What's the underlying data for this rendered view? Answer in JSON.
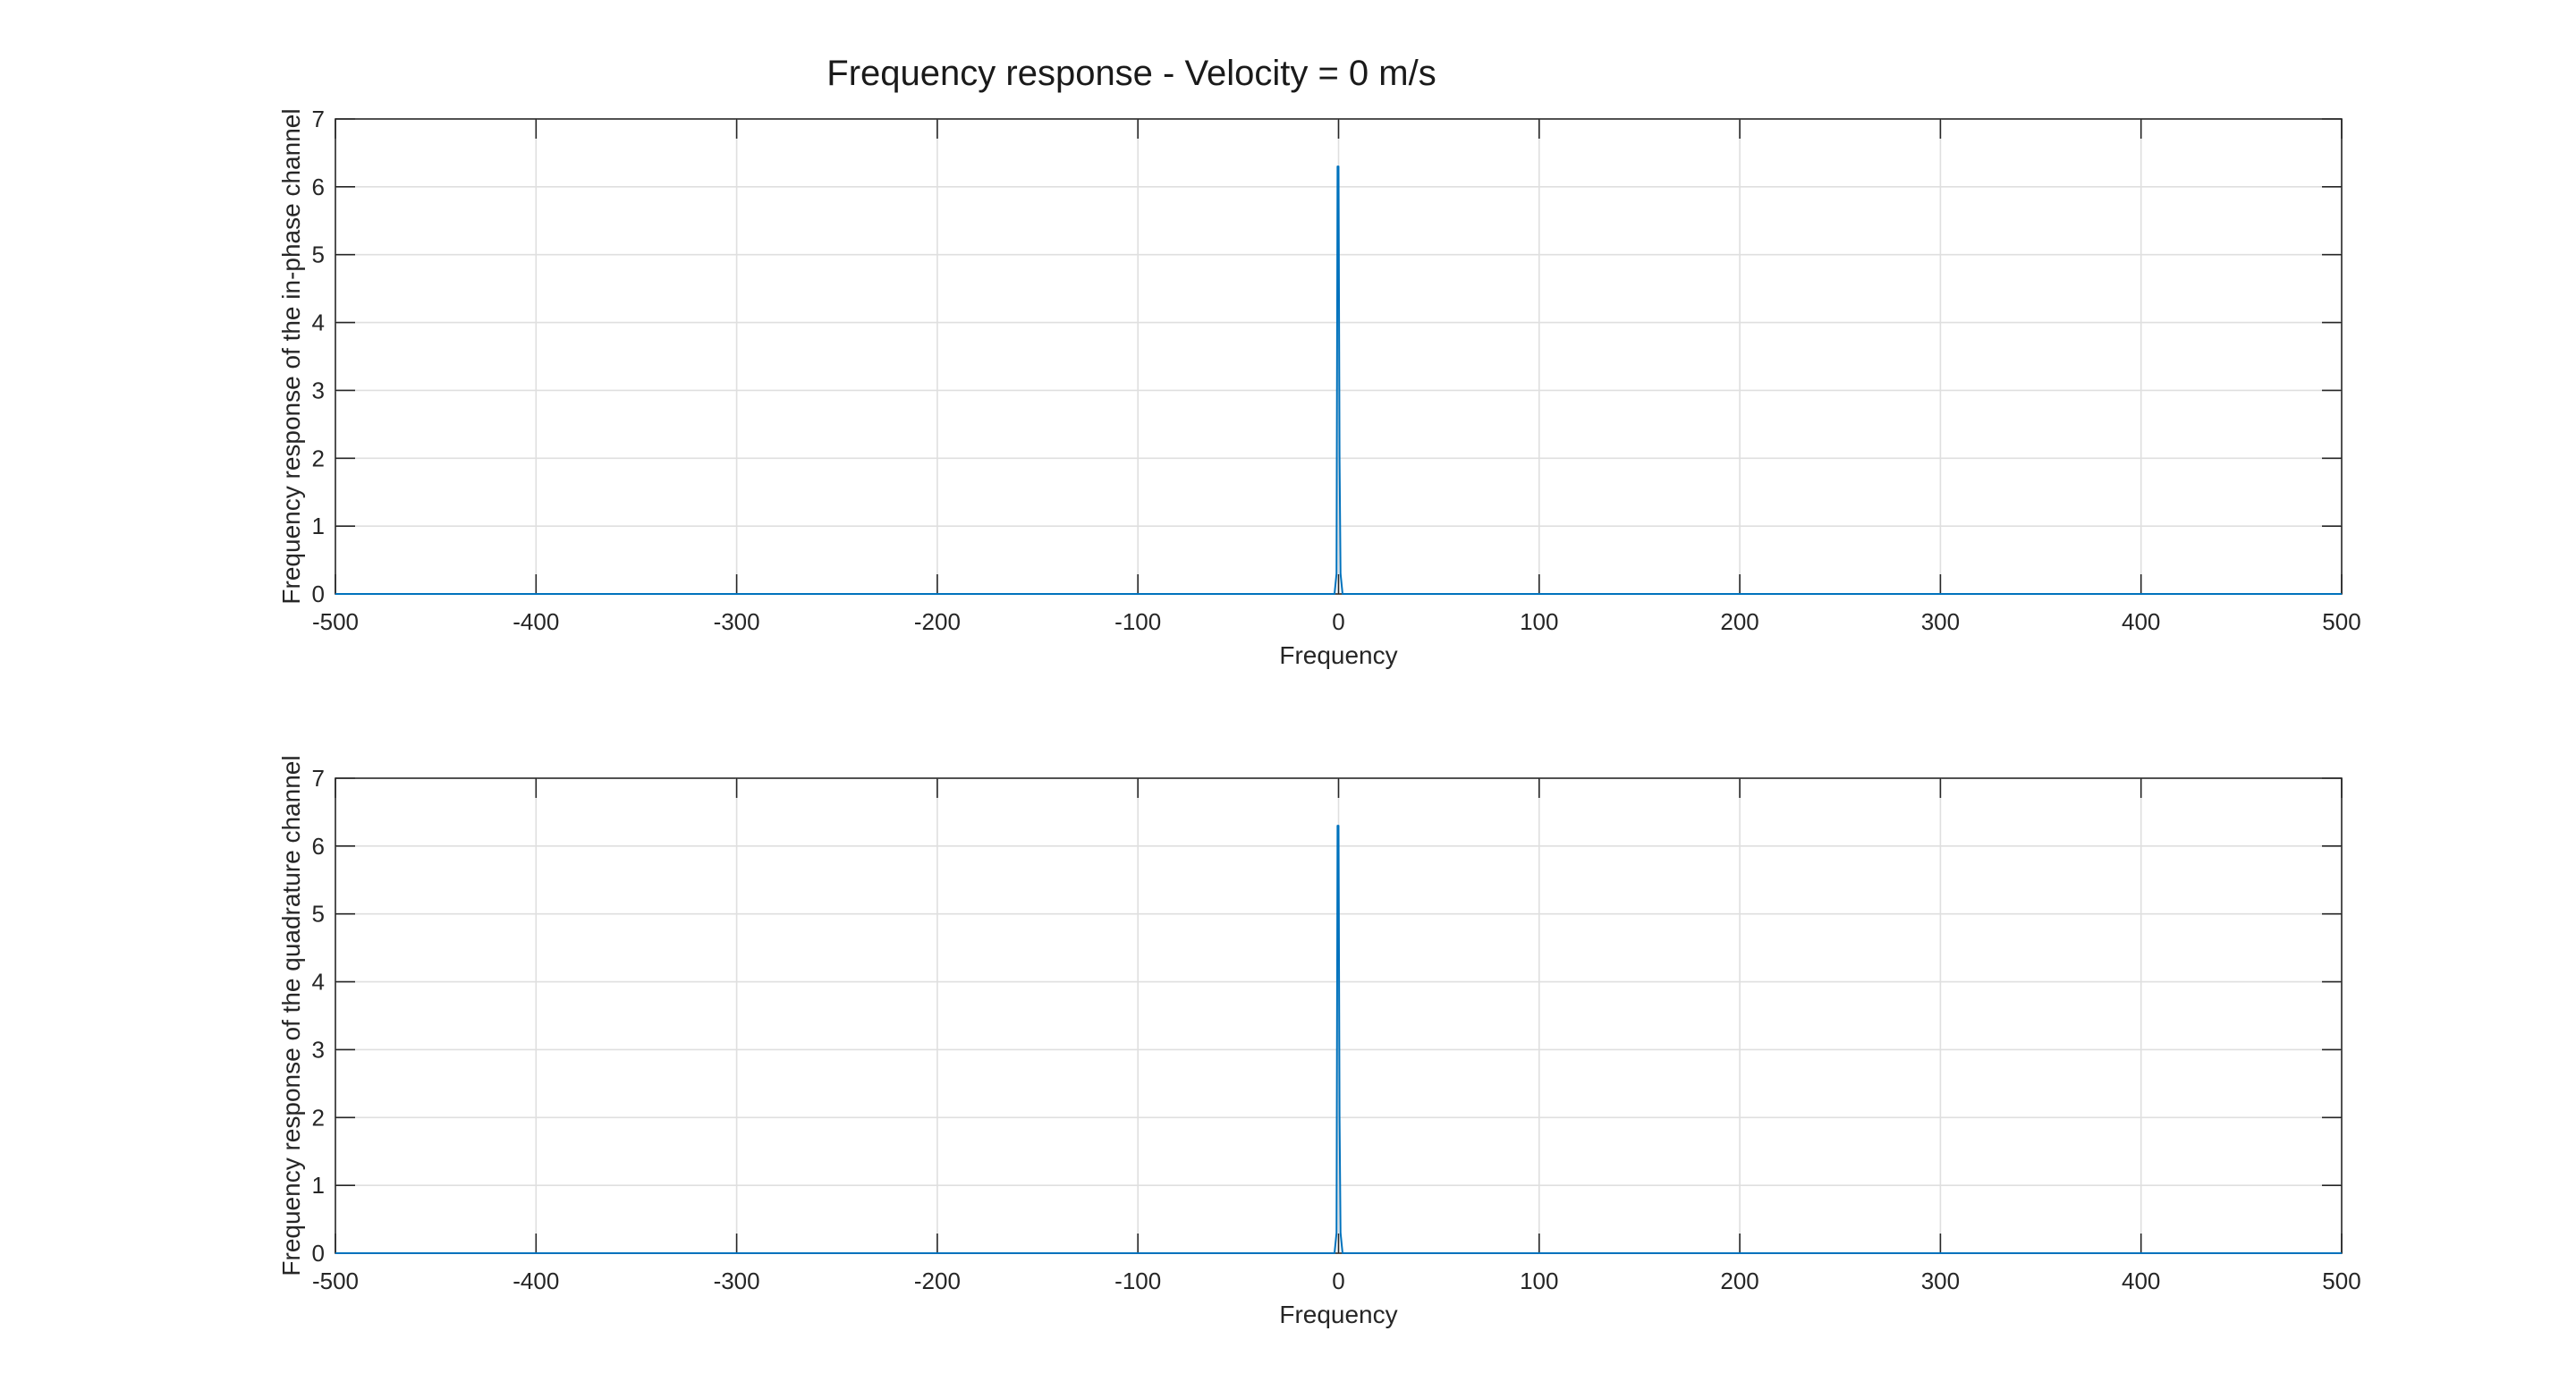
{
  "figure_title": "Frequency response - Velocity = 0 m/s",
  "colors": {
    "series": "#0072BD",
    "axes": "#262626",
    "grid": "#dfdfdf",
    "background": "#ffffff"
  },
  "chart_data": [
    {
      "type": "line",
      "xlabel": "Frequency",
      "ylabel": "Frequency response of the in-phase channel",
      "xlim": [
        -500,
        500
      ],
      "ylim": [
        0,
        7
      ],
      "xticks": [
        -500,
        -400,
        -300,
        -200,
        -100,
        0,
        100,
        200,
        300,
        400,
        500
      ],
      "yticks": [
        0,
        1,
        2,
        3,
        4,
        5,
        6,
        7
      ],
      "grid": true,
      "series": [
        {
          "x": [
            -500,
            -2,
            -1,
            -0.5,
            0,
            0.5,
            1,
            2,
            500
          ],
          "y": [
            0,
            0,
            0.3,
            6.3,
            6.3,
            2.0,
            0.3,
            0,
            0
          ]
        }
      ]
    },
    {
      "type": "line",
      "xlabel": "Frequency",
      "ylabel": "Frequency response of the quadrature channel",
      "xlim": [
        -500,
        500
      ],
      "ylim": [
        0,
        7
      ],
      "xticks": [
        -500,
        -400,
        -300,
        -200,
        -100,
        0,
        100,
        200,
        300,
        400,
        500
      ],
      "yticks": [
        0,
        1,
        2,
        3,
        4,
        5,
        6,
        7
      ],
      "grid": true,
      "series": [
        {
          "x": [
            -500,
            -2,
            -1,
            -0.5,
            0,
            0.5,
            1,
            2,
            500
          ],
          "y": [
            0,
            0,
            0.3,
            6.3,
            6.3,
            2.0,
            0.3,
            0,
            0
          ]
        }
      ]
    }
  ]
}
